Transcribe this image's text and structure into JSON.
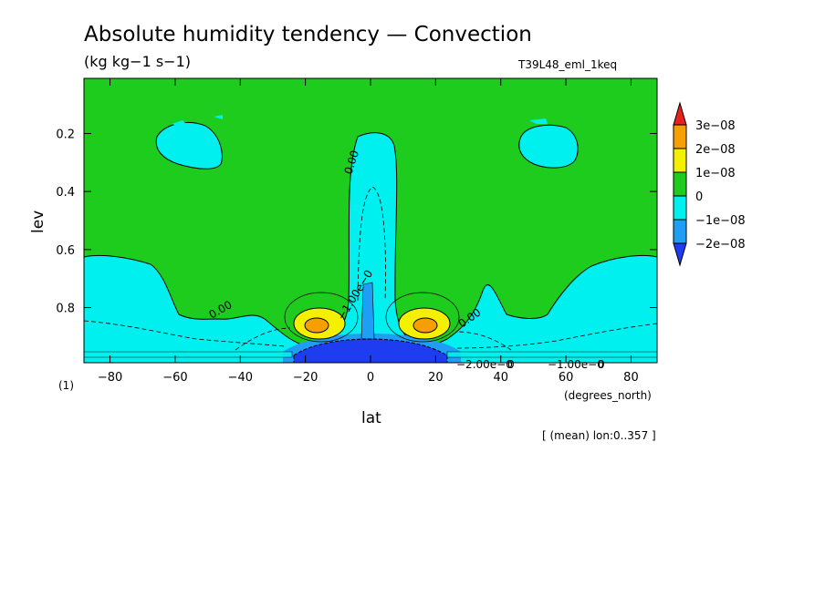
{
  "header": {
    "title": "Absolute humidity tendency — Convection",
    "units": "(kg kg−1 s−1)",
    "run_name": "T39L48_eml_1keq",
    "frame_index": "(1)",
    "averaging_note": "[ (mean) lon:0..357 ]"
  },
  "chart_data": {
    "type": "heatmap",
    "xlabel": "lat",
    "x_units": "(degrees_north)",
    "ylabel": "lev",
    "xlim": [
      -88,
      88
    ],
    "ylim": [
      0.99,
      0.01
    ],
    "x_ticks": [
      -80,
      -60,
      -40,
      -20,
      0,
      20,
      40,
      60,
      80
    ],
    "x_tick_labels": [
      "−80",
      "−60",
      "−40",
      "−20",
      "0",
      "20",
      "40",
      "60",
      "80"
    ],
    "y_ticks": [
      0.2,
      0.4,
      0.6,
      0.8
    ],
    "y_tick_labels": [
      "0.2",
      "0.4",
      "0.6",
      "0.8"
    ],
    "colorbar": {
      "labels": [
        "3e−08",
        "2e−08",
        "1e−08",
        "0",
        "−1e−08",
        "−2e−08"
      ],
      "levels": [
        3e-08,
        2e-08,
        1e-08,
        0,
        -1e-08,
        -2e-08
      ],
      "colors": [
        "#e8201e",
        "#f5a000",
        "#f5f000",
        "#1ecc1e",
        "#00f0f0",
        "#1e9ef5",
        "#1e3cf0"
      ]
    },
    "contour_labels": [
      "0.00",
      "0.00",
      "0.00",
      "−1.00e−0",
      "0.00",
      "−2.00e−0",
      "0",
      "−1.00e−0",
      "0"
    ],
    "colors": {
      "zero": "#1ecc1e",
      "neg1": "#00f0f0",
      "neg2": "#1e9ef5",
      "neg3": "#1e3cf0",
      "pos1": "#f5f000",
      "pos2": "#f5a000",
      "pos3": "#e8201e"
    }
  }
}
